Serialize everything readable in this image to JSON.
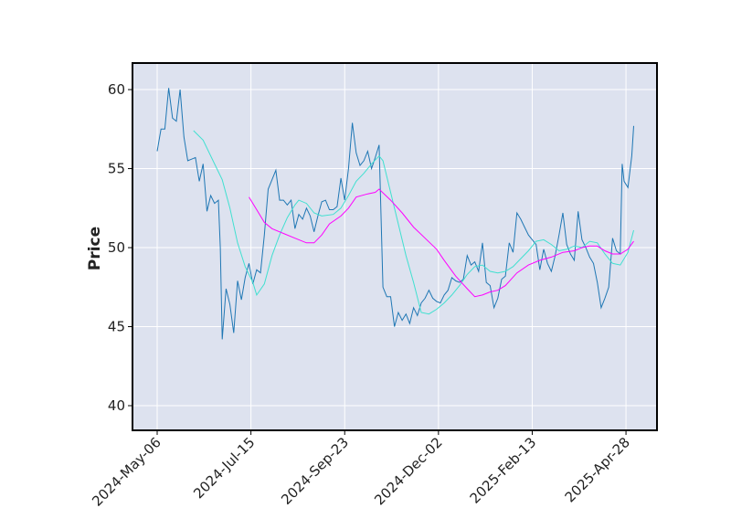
{
  "chart_data": {
    "type": "line",
    "y_label": "Price",
    "xlim": [
      -12.9,
      261.2
    ],
    "ylim": [
      38.44,
      61.68
    ],
    "xticks": [
      {
        "value": 0,
        "label": "2024-May-06"
      },
      {
        "value": 49,
        "label": "2024-Jul-15"
      },
      {
        "value": 98,
        "label": "2024-Sep-23"
      },
      {
        "value": 147,
        "label": "2024-Dec-02"
      },
      {
        "value": 196,
        "label": "2025-Feb-13"
      },
      {
        "value": 245,
        "label": "2025-Apr-28"
      }
    ],
    "yticks": [
      40,
      45,
      50,
      55,
      60
    ],
    "grid": true,
    "background": "#dde2ef",
    "series": [
      {
        "color": "#1f77b4",
        "x": [
          0,
          2,
          4,
          6,
          8,
          10,
          12,
          14,
          16,
          18,
          20,
          22,
          24,
          26,
          28,
          30,
          32,
          33,
          34,
          36,
          38,
          40,
          42,
          44,
          46,
          48,
          50,
          52,
          54,
          56,
          58,
          60,
          62,
          64,
          66,
          68,
          70,
          72,
          74,
          76,
          78,
          80,
          82,
          84,
          86,
          88,
          90,
          92,
          94,
          96,
          98,
          100,
          102,
          104,
          106,
          108,
          110,
          112,
          114,
          116,
          118,
          120,
          122,
          124,
          126,
          128,
          130,
          132,
          134,
          136,
          138,
          140,
          142,
          144,
          146,
          148,
          150,
          152,
          154,
          156,
          158,
          160,
          162,
          164,
          166,
          168,
          170,
          172,
          174,
          176,
          178,
          180,
          182,
          184,
          186,
          188,
          190,
          192,
          194,
          196,
          198,
          200,
          202,
          204,
          206,
          208,
          210,
          212,
          214,
          216,
          218,
          220,
          222,
          224,
          226,
          228,
          230,
          232,
          234,
          236,
          238,
          240,
          242,
          243,
          244,
          246,
          248,
          249
        ],
        "values": [
          56.1,
          57.5,
          57.5,
          60.1,
          58.2,
          58.0,
          60.0,
          57.0,
          55.5,
          55.6,
          55.7,
          54.2,
          55.3,
          52.3,
          53.3,
          52.8,
          53.0,
          50.0,
          44.2,
          47.4,
          46.4,
          44.6,
          47.9,
          46.7,
          48.1,
          49.0,
          47.7,
          48.6,
          48.4,
          50.8,
          53.7,
          54.3,
          54.9,
          53.0,
          53.0,
          52.7,
          53.0,
          51.2,
          52.1,
          51.8,
          52.5,
          52.0,
          51.0,
          52.0,
          52.9,
          53.0,
          52.4,
          52.4,
          52.6,
          54.4,
          53.0,
          55.0,
          57.9,
          56.0,
          55.2,
          55.5,
          56.1,
          55.0,
          55.7,
          56.5,
          47.5,
          46.9,
          46.9,
          45.0,
          45.9,
          45.4,
          45.8,
          45.2,
          46.2,
          45.7,
          46.5,
          46.8,
          47.3,
          46.8,
          46.6,
          46.5,
          47.0,
          47.3,
          48.1,
          47.9,
          47.8,
          48.0,
          49.5,
          48.9,
          49.1,
          48.5,
          50.3,
          47.8,
          47.6,
          46.2,
          46.8,
          48.0,
          48.2,
          50.3,
          49.7,
          52.2,
          51.8,
          51.3,
          50.8,
          50.5,
          50.2,
          48.6,
          49.9,
          49.0,
          48.5,
          49.5,
          50.8,
          52.2,
          50.2,
          49.6,
          49.2,
          52.3,
          50.5,
          50.0,
          49.4,
          49.0,
          47.8,
          46.2,
          46.8,
          47.5,
          50.6,
          49.8,
          49.6,
          55.3,
          54.2,
          53.8,
          55.8,
          57.7
        ]
      },
      {
        "color": "#40e0d0",
        "x": [
          19,
          24,
          30,
          34,
          38,
          42,
          46,
          50,
          52,
          56,
          60,
          64,
          68,
          72,
          74,
          78,
          82,
          86,
          92,
          96,
          100,
          104,
          108,
          112,
          116,
          118,
          122,
          126,
          130,
          134,
          138,
          142,
          146,
          150,
          154,
          158,
          162,
          166,
          170,
          174,
          178,
          182,
          186,
          190,
          194,
          198,
          202,
          206,
          210,
          214,
          218,
          222,
          226,
          230,
          234,
          238,
          242,
          246,
          249
        ],
        "values": [
          57.4,
          56.8,
          55.3,
          54.3,
          52.5,
          50.3,
          48.8,
          47.8,
          47.0,
          47.7,
          49.5,
          50.8,
          51.9,
          52.7,
          53.0,
          52.8,
          52.2,
          52.0,
          52.1,
          52.5,
          53.3,
          54.2,
          54.7,
          55.3,
          55.8,
          55.5,
          53.5,
          51.5,
          49.5,
          47.8,
          45.9,
          45.8,
          46.1,
          46.5,
          47.0,
          47.6,
          48.3,
          48.8,
          48.9,
          48.5,
          48.4,
          48.5,
          48.8,
          49.3,
          49.8,
          50.4,
          50.5,
          50.2,
          49.8,
          49.9,
          50.1,
          50.0,
          50.4,
          50.3,
          49.6,
          49.0,
          48.9,
          49.7,
          51.1
        ]
      },
      {
        "color": "#ff00ff",
        "x": [
          48,
          52,
          56,
          60,
          66,
          72,
          78,
          82,
          86,
          90,
          96,
          100,
          104,
          110,
          114,
          116,
          122,
          128,
          134,
          140,
          146,
          150,
          156,
          162,
          166,
          170,
          174,
          178,
          182,
          188,
          194,
          200,
          206,
          212,
          218,
          222,
          226,
          230,
          234,
          238,
          242,
          246,
          249
        ],
        "values": [
          53.2,
          52.4,
          51.6,
          51.2,
          50.9,
          50.6,
          50.3,
          50.3,
          50.8,
          51.5,
          52.0,
          52.5,
          53.2,
          53.4,
          53.5,
          53.7,
          53.0,
          52.2,
          51.3,
          50.6,
          49.9,
          49.2,
          48.2,
          47.4,
          46.9,
          47.0,
          47.2,
          47.3,
          47.6,
          48.4,
          48.9,
          49.2,
          49.4,
          49.7,
          49.8,
          50.0,
          50.1,
          50.1,
          49.8,
          49.6,
          49.6,
          49.9,
          50.4
        ]
      }
    ]
  }
}
